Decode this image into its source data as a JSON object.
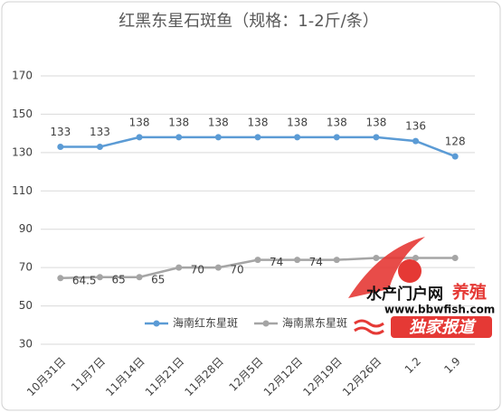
{
  "chart_data": {
    "type": "line",
    "title": "红黑东星石斑鱼（规格：1-2斤/条）",
    "categories": [
      "10月31日",
      "11月7日",
      "11月14日",
      "11月21日",
      "11月28日",
      "12月5日",
      "12月12日",
      "12月19日",
      "12月26日",
      "1.2",
      "1.9"
    ],
    "series": [
      {
        "name": "海南红东星斑",
        "color": "#5b9bd5",
        "values": [
          133,
          133,
          138,
          138,
          138,
          138,
          138,
          138,
          138,
          136,
          128
        ],
        "value_labels": [
          "133",
          "133",
          "138",
          "138",
          "138",
          "138",
          "138",
          "138",
          "138",
          "136",
          "128"
        ]
      },
      {
        "name": "海南黑东星斑",
        "color": "#a5a5a5",
        "values": [
          64.5,
          65,
          65,
          70,
          70,
          74,
          74,
          74,
          75,
          75,
          75
        ],
        "value_labels": [
          "64.5",
          "65",
          "65",
          "70",
          "70",
          "74",
          "74",
          null,
          null,
          null,
          null
        ]
      }
    ],
    "ylim": [
      30,
      170
    ],
    "yticks": [
      30,
      50,
      70,
      90,
      110,
      130,
      150,
      170
    ],
    "grid": true,
    "legend": "lower center"
  },
  "watermark": {
    "site": "水产门户网",
    "tag": "养殖",
    "url": "www.bbwfish.com",
    "headline": "独家报道"
  }
}
